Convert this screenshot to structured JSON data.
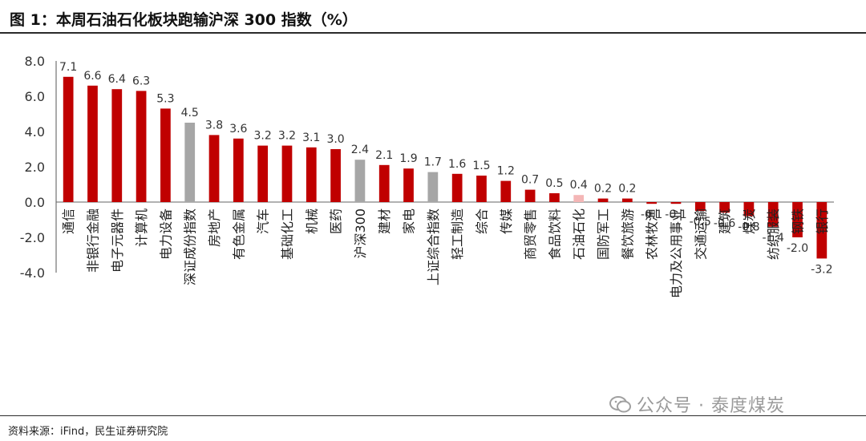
{
  "title": "图 1：本周石油石化板块跑输沪深 300 指数（%）",
  "source": "资料来源：iFind，民生证券研究院",
  "watermark": "公众号 · 泰度煤炭",
  "colors": {
    "positive": "#C00000",
    "index": "#A6A6A6",
    "highlight": "#F4B6B6"
  },
  "chart_data": {
    "type": "bar",
    "title": "本周石油石化板块跑输沪深 300 指数（%）",
    "xlabel": "",
    "ylabel": "",
    "ylim": [
      -4,
      8
    ],
    "yticks": [
      "8.0",
      "6.0",
      "4.0",
      "2.0",
      "0.0",
      "-2.0",
      "-4.0"
    ],
    "grid": false,
    "legend": "none",
    "categories": [
      "通信",
      "非银行金融",
      "电子元器件",
      "计算机",
      "电力设备",
      "深证成份指数",
      "房地产",
      "有色金属",
      "汽车",
      "基础化工",
      "机械",
      "医药",
      "沪深300",
      "建材",
      "家电",
      "上证综合指数",
      "轻工制造",
      "综合",
      "传媒",
      "商贸零售",
      "食品饮料",
      "石油石化",
      "国防军工",
      "餐饮旅游",
      "农林牧渔",
      "电力及公用事业",
      "交通运输",
      "建筑",
      "煤炭",
      "纺织服装",
      "钢铁",
      "银行"
    ],
    "values": [
      7.1,
      6.6,
      6.4,
      6.3,
      5.3,
      4.5,
      3.8,
      3.6,
      3.2,
      3.2,
      3.1,
      3.0,
      2.4,
      2.1,
      1.9,
      1.7,
      1.6,
      1.5,
      1.2,
      0.7,
      0.5,
      0.4,
      0.2,
      0.2,
      -0.1,
      -0.1,
      -0.5,
      -0.6,
      -0.8,
      -1.4,
      -2.0,
      -3.2
    ],
    "labels": [
      "7.1",
      "6.6",
      "6.4",
      "6.3",
      "5.3",
      "4.5",
      "3.8",
      "3.6",
      "3.2",
      "3.2",
      "3.1",
      "3.0",
      "2.4",
      "2.1",
      "1.9",
      "1.7",
      "1.6",
      "1.5",
      "1.2",
      "0.7",
      "0.5",
      "0.4",
      "0.2",
      "0.2",
      "-0.1",
      "-0.1",
      "-0.5",
      "-0.6",
      "-0.8",
      "-1.4",
      "-2.0",
      "-3.2"
    ],
    "bar_kind": [
      "main",
      "main",
      "main",
      "main",
      "main",
      "index",
      "main",
      "main",
      "main",
      "main",
      "main",
      "main",
      "index",
      "main",
      "main",
      "index",
      "main",
      "main",
      "main",
      "main",
      "main",
      "highlight",
      "main",
      "main",
      "main",
      "main",
      "main",
      "main",
      "main",
      "main",
      "main",
      "main"
    ]
  }
}
